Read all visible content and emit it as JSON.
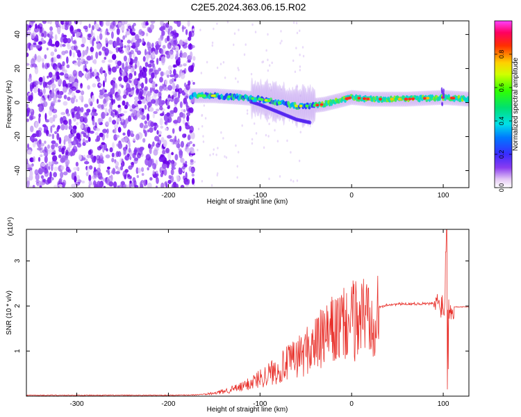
{
  "title": "C2E5.2024.363.06.15.R02",
  "chart_data": [
    {
      "type": "heatmap",
      "xlabel": "Height of straight line (km)",
      "ylabel": "Frequency (Hz)",
      "xlim": [
        -355,
        128
      ],
      "ylim": [
        -50,
        48
      ],
      "xticks": [
        -300,
        -200,
        -100,
        0,
        100
      ],
      "yticks": [
        -40,
        -20,
        0,
        20,
        40
      ],
      "colorbar": {
        "label": "Normalized spectral amplitude",
        "range": [
          0,
          1
        ],
        "ticks": [
          0.0,
          0.2,
          0.4,
          0.6,
          0.8
        ],
        "tick_labels": [
          "0.0",
          "0.2",
          "0.4",
          "0.6",
          "0.8"
        ]
      },
      "signal_trace": [
        {
          "x": -175,
          "y": 4
        },
        {
          "x": -150,
          "y": 4
        },
        {
          "x": -120,
          "y": 3
        },
        {
          "x": -100,
          "y": 2
        },
        {
          "x": -80,
          "y": 0
        },
        {
          "x": -60,
          "y": -2
        },
        {
          "x": -45,
          "y": -2
        },
        {
          "x": -30,
          "y": -1
        },
        {
          "x": -15,
          "y": 1
        },
        {
          "x": 0,
          "y": 3
        },
        {
          "x": 20,
          "y": 2
        },
        {
          "x": 60,
          "y": 2
        },
        {
          "x": 100,
          "y": 3
        },
        {
          "x": 128,
          "y": 2
        }
      ]
    },
    {
      "type": "line",
      "xlabel": "Height of straight line (km)",
      "ylabel": "SNR (10 * v/v)",
      "scale_label": "(x10⁴)",
      "xlim": [
        -355,
        128
      ],
      "ylim": [
        0,
        3.7
      ],
      "xticks": [
        -300,
        -200,
        -100,
        0,
        100
      ],
      "yticks": [
        1,
        2,
        3
      ],
      "series": [
        {
          "color": "#e8302a",
          "envelope": [
            {
              "x": -355,
              "y": 0.02
            },
            {
              "x": -200,
              "y": 0.02
            },
            {
              "x": -170,
              "y": 0.03
            },
            {
              "x": -150,
              "y": 0.06
            },
            {
              "x": -120,
              "y": 0.2
            },
            {
              "x": -100,
              "y": 0.4
            },
            {
              "x": -80,
              "y": 0.6
            },
            {
              "x": -60,
              "y": 0.85
            },
            {
              "x": -40,
              "y": 1.15
            },
            {
              "x": -20,
              "y": 1.45
            },
            {
              "x": 0,
              "y": 1.65
            },
            {
              "x": 20,
              "y": 1.9
            },
            {
              "x": 40,
              "y": 2.03
            },
            {
              "x": 60,
              "y": 2.05
            },
            {
              "x": 80,
              "y": 2.05
            },
            {
              "x": 95,
              "y": 2.05
            },
            {
              "x": 110,
              "y": 1.98
            },
            {
              "x": 128,
              "y": 1.98
            }
          ],
          "spike": {
            "x": 104,
            "min": 0.15,
            "max": 3.7
          }
        }
      ]
    }
  ]
}
